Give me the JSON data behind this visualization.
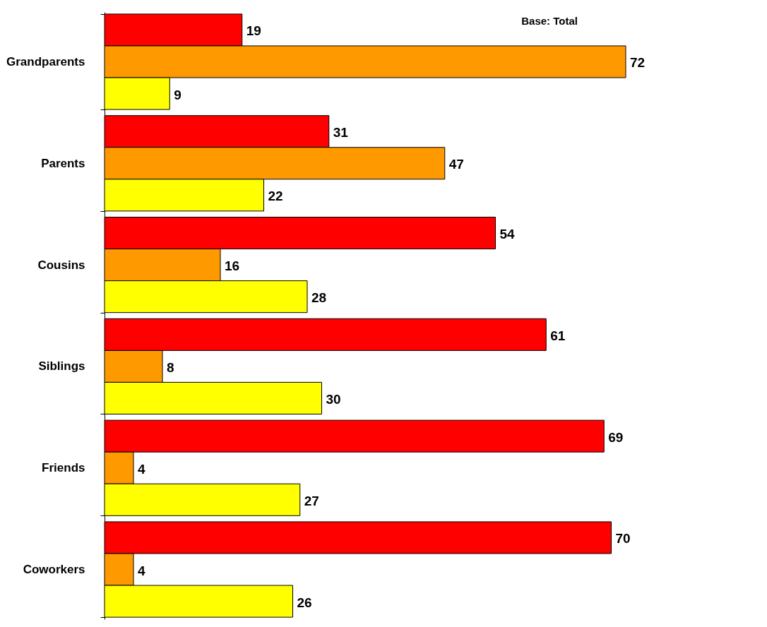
{
  "chart_data": {
    "type": "bar",
    "orientation": "horizontal",
    "data_labels": true,
    "tick_labels": "y",
    "annotations": [
      "Base:  Total"
    ],
    "categories": [
      "Grandparents",
      "Parents",
      "Cousins",
      "Siblings",
      "Friends",
      "Coworkers"
    ],
    "series": [
      {
        "color": "#ff0000",
        "values": [
          19,
          31,
          54,
          61,
          69,
          70
        ]
      },
      {
        "color": "#ff9900",
        "values": [
          72,
          47,
          16,
          8,
          4,
          4
        ]
      },
      {
        "color": "#ffff00",
        "values": [
          9,
          22,
          28,
          30,
          27,
          26
        ]
      }
    ]
  }
}
